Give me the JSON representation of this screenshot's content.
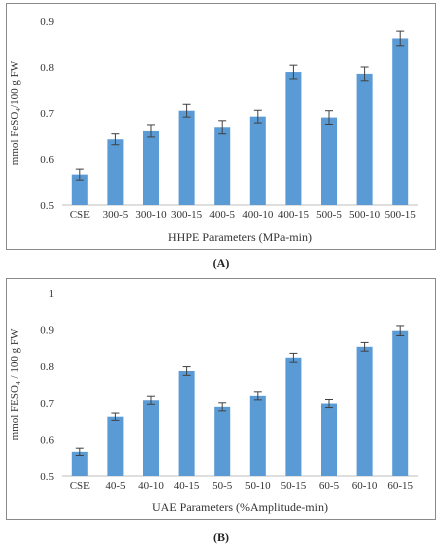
{
  "panels": {
    "a_label": "(A)",
    "b_label": "(B)"
  },
  "colors": {
    "bar": "#5b9bd5",
    "error": "#404040",
    "grid": "#d9d9d9",
    "axis": "#bfbfbf"
  },
  "chart_data": [
    {
      "type": "bar",
      "title": "",
      "xlabel": "HHPE Parameters (MPa-min)",
      "ylabel": "mmol FeSO₄/100 g FW",
      "ylim": [
        0.5,
        0.9
      ],
      "yticks": [
        0.5,
        0.6,
        0.7,
        0.8,
        0.9
      ],
      "grid": false,
      "categories": [
        "CSE",
        "300-5",
        "300-10",
        "300-15",
        "400-5",
        "400-10",
        "400-15",
        "500-5",
        "500-10",
        "500-15"
      ],
      "values": [
        0.566,
        0.643,
        0.661,
        0.705,
        0.669,
        0.692,
        0.789,
        0.69,
        0.785,
        0.862
      ],
      "errors": [
        0.012,
        0.012,
        0.013,
        0.014,
        0.014,
        0.014,
        0.015,
        0.015,
        0.015,
        0.016
      ]
    },
    {
      "type": "bar",
      "title": "",
      "xlabel": "UAE Parameters (%Amplitude-min)",
      "ylabel": "mmol FESO₄ / 100 g FW",
      "ylim": [
        0.5,
        1.0
      ],
      "yticks": [
        0.5,
        0.6,
        0.7,
        0.8,
        0.9,
        1
      ],
      "grid": false,
      "categories": [
        "CSE",
        "40-5",
        "40-10",
        "40-15",
        "50-5",
        "50-10",
        "50-15",
        "60-5",
        "60-10",
        "60-15"
      ],
      "values": [
        0.566,
        0.662,
        0.707,
        0.787,
        0.689,
        0.719,
        0.823,
        0.698,
        0.853,
        0.897
      ],
      "errors": [
        0.01,
        0.01,
        0.011,
        0.012,
        0.011,
        0.011,
        0.012,
        0.011,
        0.012,
        0.013
      ]
    }
  ]
}
